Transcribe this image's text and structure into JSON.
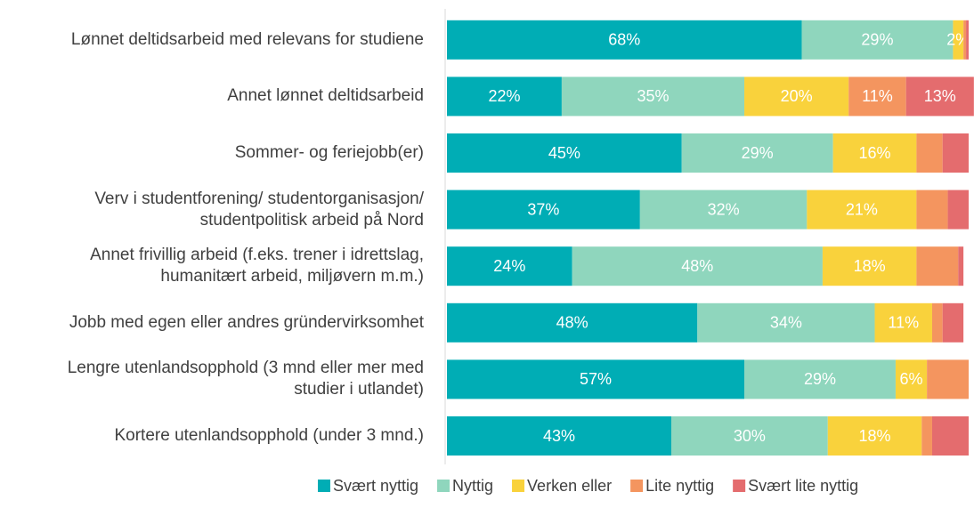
{
  "chart_data": {
    "type": "stacked_hbar",
    "categories": [
      "Lønnet deltidsarbeid med relevans for studiene",
      "Annet lønnet deltidsarbeid",
      "Sommer- og feriejobb(er)",
      "Verv i studentforening/ studentorganisasjon/\nstudentpolitisk arbeid på Nord",
      "Annet frivillig arbeid (f.eks. trener i idrettslag,\nhumanitært arbeid, miljøvern m.m.)",
      "Jobb med egen eller andres gründervirksomhet",
      "Lengre utenlandsopphold (3 mnd eller mer med\nstudier i utlandet)",
      "Kortere utenlandsopphold (under 3 mnd.)"
    ],
    "series": [
      {
        "name": "Svært nyttig",
        "color": "#00adb5",
        "values": [
          68,
          22,
          45,
          37,
          24,
          48,
          57,
          43
        ],
        "value_labels": [
          "68%",
          "22%",
          "45%",
          "37%",
          "24%",
          "48%",
          "57%",
          "43%"
        ]
      },
      {
        "name": "Nyttig",
        "color": "#8fd6bd",
        "values": [
          29,
          35,
          29,
          32,
          48,
          34,
          29,
          30
        ],
        "value_labels": [
          "29%",
          "35%",
          "29%",
          "32%",
          "48%",
          "34%",
          "29%",
          "30%"
        ]
      },
      {
        "name": "Verken eller",
        "color": "#f9d23c",
        "values": [
          2,
          20,
          16,
          21,
          18,
          11,
          6,
          18
        ],
        "value_labels": [
          "2%",
          "20%",
          "16%",
          "21%",
          "18%",
          "11%",
          "6%",
          "18%"
        ]
      },
      {
        "name": "Lite nyttig",
        "color": "#f4955f",
        "values": [
          0.5,
          11,
          5,
          6,
          8,
          2,
          8,
          2
        ],
        "value_labels": [
          null,
          "11%",
          null,
          null,
          null,
          null,
          null,
          null
        ]
      },
      {
        "name": "Svært lite nyttig",
        "color": "#e46c6e",
        "values": [
          0.5,
          13,
          5,
          4,
          1,
          4,
          0,
          7
        ],
        "value_labels": [
          null,
          "13%",
          null,
          null,
          null,
          null,
          null,
          null
        ]
      }
    ],
    "legend": "bottom"
  }
}
